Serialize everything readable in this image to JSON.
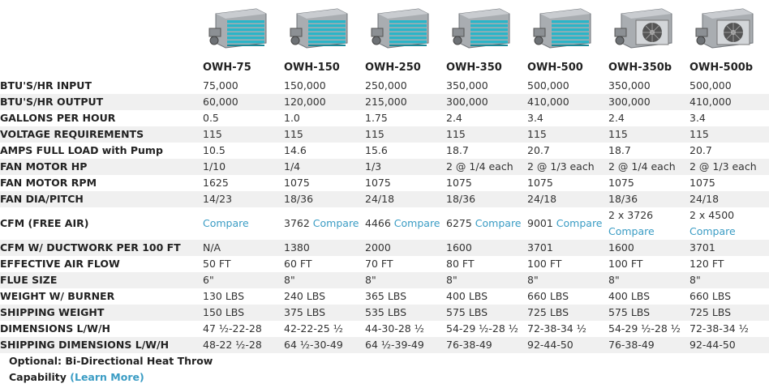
{
  "models": [
    {
      "name": "OWH-75",
      "icon": "heater-small-image"
    },
    {
      "name": "OWH-150",
      "icon": "heater-image"
    },
    {
      "name": "OWH-250",
      "icon": "heater-image"
    },
    {
      "name": "OWH-350",
      "icon": "heater-image"
    },
    {
      "name": "OWH-500",
      "icon": "heater-large-image"
    },
    {
      "name": "OWH-350b",
      "icon": "heater-fan-image"
    },
    {
      "name": "OWH-500b",
      "icon": "heater-fan-image"
    }
  ],
  "rows": [
    {
      "label": "BTU'S/HR INPUT",
      "values": [
        "75,000",
        "150,000",
        "250,000",
        "350,000",
        "500,000",
        "350,000",
        "500,000"
      ]
    },
    {
      "label": "BTU'S/HR OUTPUT",
      "values": [
        "60,000",
        "120,000",
        "215,000",
        "300,000",
        "410,000",
        "300,000",
        "410,000"
      ]
    },
    {
      "label": "GALLONS PER HOUR",
      "values": [
        "0.5",
        "1.0",
        "1.75",
        "2.4",
        "3.4",
        "2.4",
        "3.4"
      ]
    },
    {
      "label": "VOLTAGE REQUIREMENTS",
      "values": [
        "115",
        "115",
        "115",
        "115",
        "115",
        "115",
        "115"
      ]
    },
    {
      "label": "AMPS FULL LOAD with Pump",
      "values": [
        "10.5",
        "14.6",
        "15.6",
        "18.7",
        "20.7",
        "18.7",
        "20.7"
      ]
    },
    {
      "label": "FAN MOTOR HP",
      "values": [
        "1/10",
        "1/4",
        "1/3",
        "2 @ 1/4 each",
        "2 @ 1/3 each",
        "2 @ 1/4 each",
        "2 @ 1/3 each"
      ]
    },
    {
      "label": "FAN MOTOR RPM",
      "values": [
        "1625",
        "1075",
        "1075",
        "1075",
        "1075",
        "1075",
        "1075"
      ]
    },
    {
      "label": "FAN DIA/PITCH",
      "values": [
        "14/23",
        "18/36",
        "24/18",
        "18/36",
        "24/18",
        "18/36",
        "24/18"
      ]
    }
  ],
  "cfm_row": {
    "label": "CFM (FREE AIR)",
    "compare_label": "Compare",
    "values": [
      "",
      "3762",
      "4466",
      "6275",
      "9001",
      "2 x 3726",
      "2 x 4500"
    ]
  },
  "rows2": [
    {
      "label": "CFM W/ DUCTWORK PER 100 FT",
      "values": [
        "N/A",
        "1380",
        "2000",
        "1600",
        "3701",
        "1600",
        "3701"
      ]
    },
    {
      "label": "EFFECTIVE AIR FLOW",
      "values": [
        "50 FT",
        "60 FT",
        "70 FT",
        "80 FT",
        "100 FT",
        "100 FT",
        "120 FT"
      ]
    },
    {
      "label": "FLUE SIZE",
      "values": [
        "6\"",
        "8\"",
        "8\"",
        "8\"",
        "8\"",
        "8\"",
        "8\""
      ]
    },
    {
      "label": "WEIGHT W/ BURNER",
      "values": [
        "130 LBS",
        "240 LBS",
        "365 LBS",
        "400 LBS",
        "660 LBS",
        "400 LBS",
        "660 LBS"
      ]
    },
    {
      "label": "SHIPPING WEIGHT",
      "values": [
        "150 LBS",
        "375 LBS",
        "535 LBS",
        "575 LBS",
        "725 LBS",
        "575 LBS",
        "725 LBS"
      ]
    },
    {
      "label": "DIMENSIONS L/W/H",
      "values": [
        "47 ½-22-28",
        "42-22-25 ½",
        "44-30-28 ½",
        "54-29 ½-28 ½",
        "72-38-34 ½",
        "54-29 ½-28 ½",
        "72-38-34 ½"
      ]
    },
    {
      "label": "SHIPPING DIMENSIONS L/W/H",
      "values": [
        "48-22 ½-28",
        "64 ½-30-49",
        "64 ½-39-49",
        "76-38-49",
        "92-44-50",
        "76-38-49",
        "92-44-50"
      ]
    }
  ],
  "optional": {
    "line1": "Optional: Bi-Directional Heat Throw",
    "line2": "Capability",
    "link": "(Learn More)"
  },
  "colors": {
    "shaded": "#f0f0f0",
    "link": "#3a9cc4",
    "fin": "#2ab5c8",
    "steel": "#a9adb1"
  }
}
